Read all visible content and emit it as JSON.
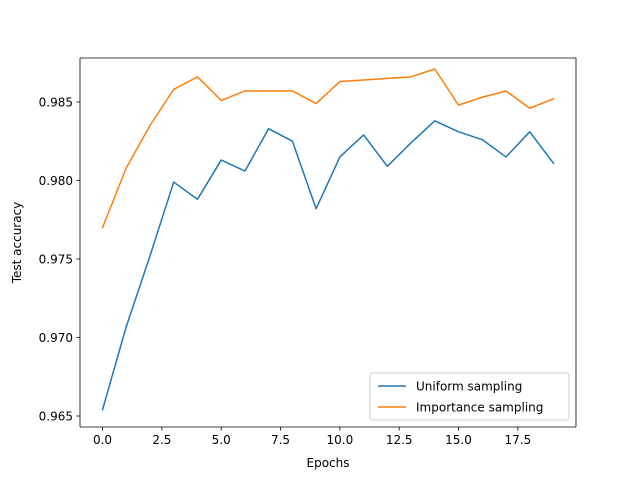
{
  "chart_data": {
    "type": "line",
    "title": "",
    "xlabel": "Epochs",
    "ylabel": "Test accuracy",
    "xlim": [
      -0.95,
      19.95
    ],
    "ylim": [
      0.9643,
      0.9878
    ],
    "xticks": [
      0.0,
      2.5,
      5.0,
      7.5,
      10.0,
      12.5,
      15.0,
      17.5
    ],
    "xtick_labels": [
      "0.0",
      "2.5",
      "5.0",
      "7.5",
      "10.0",
      "12.5",
      "15.0",
      "17.5"
    ],
    "yticks": [
      0.965,
      0.97,
      0.975,
      0.98,
      0.985
    ],
    "ytick_labels": [
      "0.965",
      "0.970",
      "0.975",
      "0.980",
      "0.985"
    ],
    "grid": false,
    "legend_position": "lower-right",
    "x": [
      0,
      1,
      2,
      3,
      4,
      5,
      6,
      7,
      8,
      9,
      10,
      11,
      12,
      13,
      14,
      15,
      16,
      17,
      18,
      19
    ],
    "series": [
      {
        "name": "Uniform sampling",
        "color": "#1f77b4",
        "values": [
          0.9654,
          0.9707,
          0.9752,
          0.9799,
          0.9788,
          0.9813,
          0.9806,
          0.9833,
          0.9825,
          0.9782,
          0.9815,
          0.9829,
          0.9809,
          0.9824,
          0.9838,
          0.9831,
          0.9826,
          0.9815,
          0.9831,
          0.9811
        ]
      },
      {
        "name": "Importance sampling",
        "color": "#ff7f0e",
        "values": [
          0.977,
          0.9808,
          0.9835,
          0.9858,
          0.9866,
          0.9851,
          0.9857,
          0.9857,
          0.9857,
          0.9849,
          0.9863,
          0.9864,
          0.9865,
          0.9866,
          0.9871,
          0.9848,
          0.9853,
          0.9857,
          0.9846,
          0.9852
        ]
      }
    ]
  }
}
